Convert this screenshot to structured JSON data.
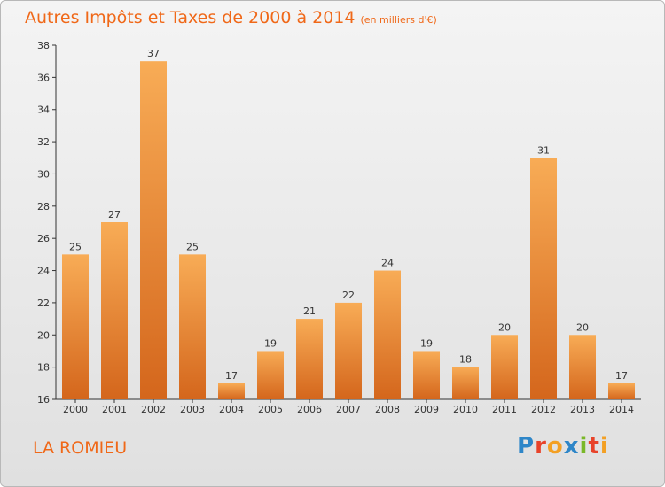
{
  "title": "Autres Impôts et Taxes de 2000 à 2014",
  "subtitle": "(en milliers d'€)",
  "commune": "LA ROMIEU",
  "logo": {
    "text": "Proxiti",
    "letters": [
      {
        "ch": "P",
        "color": "#2e86c8"
      },
      {
        "ch": "r",
        "color": "#e8432a"
      },
      {
        "ch": "o",
        "color": "#f3a024"
      },
      {
        "ch": "x",
        "color": "#2e86c8"
      },
      {
        "ch": "i",
        "color": "#7ab828"
      },
      {
        "ch": "t",
        "color": "#e8432a"
      },
      {
        "ch": "i",
        "color": "#f3a024"
      }
    ]
  },
  "colors": {
    "bar": "#f08a2a",
    "bar_light": "#f6a850",
    "bar_dark": "#d8661a",
    "title": "#f06818"
  },
  "chart_data": {
    "type": "bar",
    "title": "Autres Impôts et Taxes de 2000 à 2014",
    "subtitle": "(en milliers d'€)",
    "categories": [
      "2000",
      "2001",
      "2002",
      "2003",
      "2004",
      "2005",
      "2006",
      "2007",
      "2008",
      "2009",
      "2010",
      "2011",
      "2012",
      "2013",
      "2014"
    ],
    "values": [
      25,
      27,
      37,
      25,
      17,
      19,
      21,
      22,
      24,
      19,
      18,
      20,
      31,
      20,
      17
    ],
    "ylim": [
      16,
      38
    ],
    "yticks": [
      16,
      18,
      20,
      22,
      24,
      26,
      28,
      30,
      32,
      34,
      36,
      38
    ],
    "grid": false,
    "legend": "none"
  }
}
